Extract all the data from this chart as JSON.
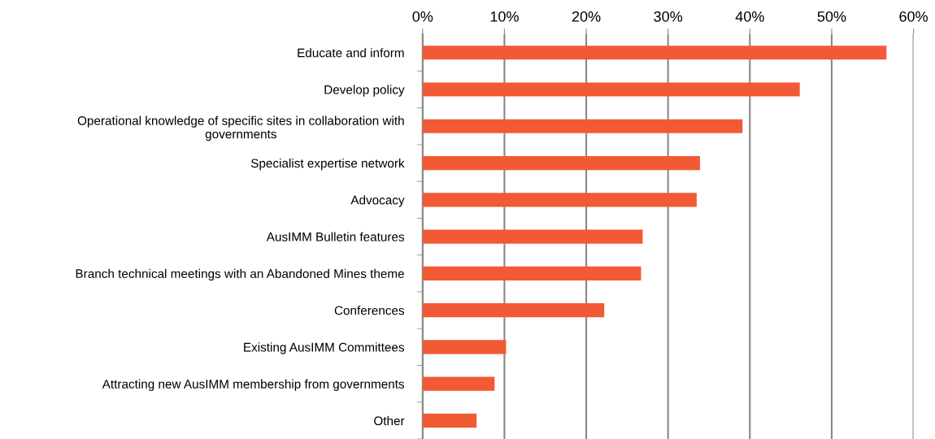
{
  "chart_data": {
    "type": "bar",
    "orientation": "horizontal",
    "categories": [
      "Educate and inform",
      "Develop policy",
      "Operational knowledge of specific sites in collaboration with\ngovernments",
      "Specialist expertise network",
      "Advocacy",
      "AusIMM Bulletin features",
      "Branch technical meetings with an Abandoned Mines theme",
      "Conferences",
      "Existing AusIMM Committees",
      "Attracting new AusIMM membership from governments",
      "Other"
    ],
    "values": [
      56.7,
      46.1,
      39.1,
      33.9,
      33.5,
      26.9,
      26.7,
      22.2,
      10.2,
      8.8,
      6.6
    ],
    "color": "#f15a35",
    "xlim": [
      0,
      60
    ],
    "xticks": [
      {
        "value": 0,
        "label": "0%"
      },
      {
        "value": 10,
        "label": "10%"
      },
      {
        "value": 20,
        "label": "20%"
      },
      {
        "value": 30,
        "label": "30%"
      },
      {
        "value": 40,
        "label": "40%"
      },
      {
        "value": 50,
        "label": "50%"
      },
      {
        "value": 60,
        "label": "60%"
      }
    ],
    "grid": "x",
    "legend": false
  }
}
